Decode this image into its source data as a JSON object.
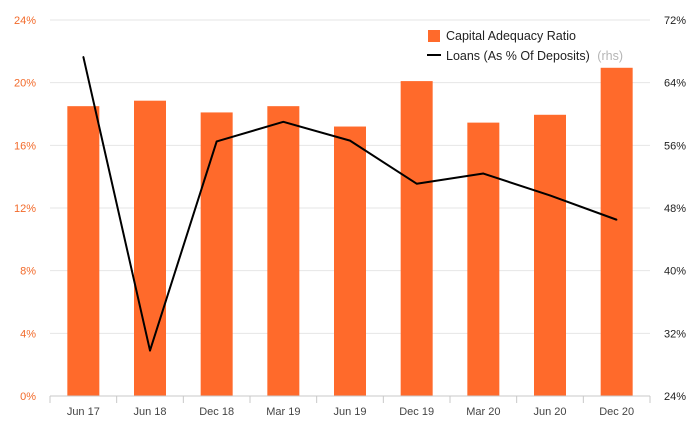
{
  "chart_data": {
    "type": "bar+line",
    "categories": [
      "Jun 17",
      "Jun 18",
      "Dec 18",
      "Mar 19",
      "Jun 19",
      "Dec 19",
      "Mar 20",
      "Jun 20",
      "Dec 20"
    ],
    "series": [
      {
        "name": "Capital Adequacy Ratio",
        "type": "bar",
        "axis": "left",
        "color": "#ff6a2b",
        "values": [
          18.5,
          18.85,
          18.1,
          18.5,
          17.2,
          20.1,
          17.45,
          17.95,
          20.95
        ]
      },
      {
        "name": "Loans (As % Of Deposits)",
        "name_suffix": "(rhs)",
        "type": "line",
        "axis": "right",
        "color": "#000000",
        "values": [
          67.3,
          29.8,
          56.5,
          59.0,
          56.6,
          51.1,
          52.4,
          49.6,
          46.5
        ]
      }
    ],
    "y_left": {
      "ylim": [
        0,
        24
      ],
      "ticks": [
        0,
        4,
        8,
        12,
        16,
        20,
        24
      ],
      "tick_labels": [
        "0%",
        "4%",
        "8%",
        "12%",
        "16%",
        "20%",
        "24%"
      ],
      "color": "#f26a2a"
    },
    "y_right": {
      "ylim": [
        24,
        72
      ],
      "ticks": [
        24,
        32,
        40,
        48,
        56,
        64,
        72
      ],
      "tick_labels": [
        "24%",
        "32%",
        "40%",
        "48%",
        "56%",
        "64%",
        "72%"
      ],
      "color": "#222222"
    },
    "grid": true,
    "legend_position": "top-right"
  }
}
